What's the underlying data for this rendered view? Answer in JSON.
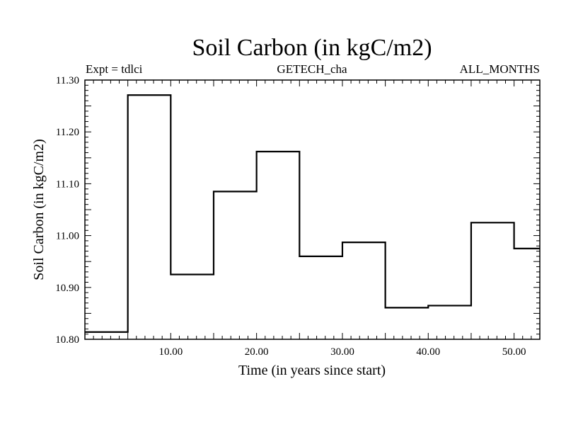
{
  "chart_data": {
    "type": "line",
    "title": "Soil Carbon (in kgC/m2)",
    "subtitle_left": "Expt = tdlci",
    "subtitle_center": "GETECH_cha",
    "subtitle_right": "ALL_MONTHS",
    "xlabel": "Time (in years since start)",
    "ylabel": "Soil Carbon (in kgC/m2)",
    "xlim": [
      0,
      53
    ],
    "ylim": [
      10.8,
      11.3
    ],
    "xticks": [
      "10.00",
      "20.00",
      "30.00",
      "40.00",
      "50.00"
    ],
    "xtick_values": [
      10,
      20,
      30,
      40,
      50
    ],
    "yticks": [
      "10.80",
      "10.90",
      "11.00",
      "11.10",
      "11.20",
      "11.30"
    ],
    "ytick_values": [
      10.8,
      10.9,
      11.0,
      11.1,
      11.2,
      11.3
    ],
    "step": "post",
    "series": [
      {
        "x": [
          0,
          5,
          10,
          15,
          20,
          25,
          30,
          35,
          40,
          45,
          50
        ],
        "values": [
          10.814,
          11.271,
          10.925,
          11.085,
          11.162,
          10.96,
          10.987,
          10.861,
          10.865,
          11.025,
          10.975
        ]
      }
    ]
  }
}
